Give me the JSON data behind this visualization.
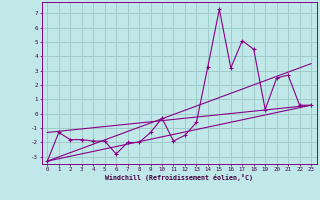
{
  "xlabel": "Windchill (Refroidissement éolien,°C)",
  "bg_color": "#c0e8e8",
  "grid_color": "#a0cccc",
  "line_color": "#880088",
  "series": [
    [
      0,
      -3.3
    ],
    [
      1,
      -1.3
    ],
    [
      2,
      -1.8
    ],
    [
      3,
      -1.8
    ],
    [
      4,
      -1.9
    ],
    [
      5,
      -1.9
    ],
    [
      6,
      -2.8
    ],
    [
      7,
      -2.0
    ],
    [
      8,
      -2.0
    ],
    [
      9,
      -1.3
    ],
    [
      10,
      -0.3
    ],
    [
      11,
      -1.9
    ],
    [
      12,
      -1.5
    ],
    [
      13,
      -0.6
    ],
    [
      14,
      3.3
    ],
    [
      15,
      7.3
    ],
    [
      16,
      3.2
    ],
    [
      17,
      5.1
    ],
    [
      18,
      4.5
    ],
    [
      19,
      0.3
    ],
    [
      20,
      2.5
    ],
    [
      21,
      2.7
    ],
    [
      22,
      0.6
    ],
    [
      23,
      0.6
    ]
  ],
  "series2": [
    [
      0,
      -3.3
    ],
    [
      23,
      3.5
    ]
  ],
  "series3": [
    [
      0,
      -3.3
    ],
    [
      23,
      0.6
    ]
  ],
  "series4": [
    [
      0,
      -1.3
    ],
    [
      23,
      0.6
    ]
  ],
  "ylim": [
    -3.5,
    7.8
  ],
  "xlim": [
    -0.5,
    23.5
  ],
  "yticks": [
    -3,
    -2,
    -1,
    0,
    1,
    2,
    3,
    4,
    5,
    6,
    7
  ],
  "xticks": [
    0,
    1,
    2,
    3,
    4,
    5,
    6,
    7,
    8,
    9,
    10,
    11,
    12,
    13,
    14,
    15,
    16,
    17,
    18,
    19,
    20,
    21,
    22,
    23
  ]
}
